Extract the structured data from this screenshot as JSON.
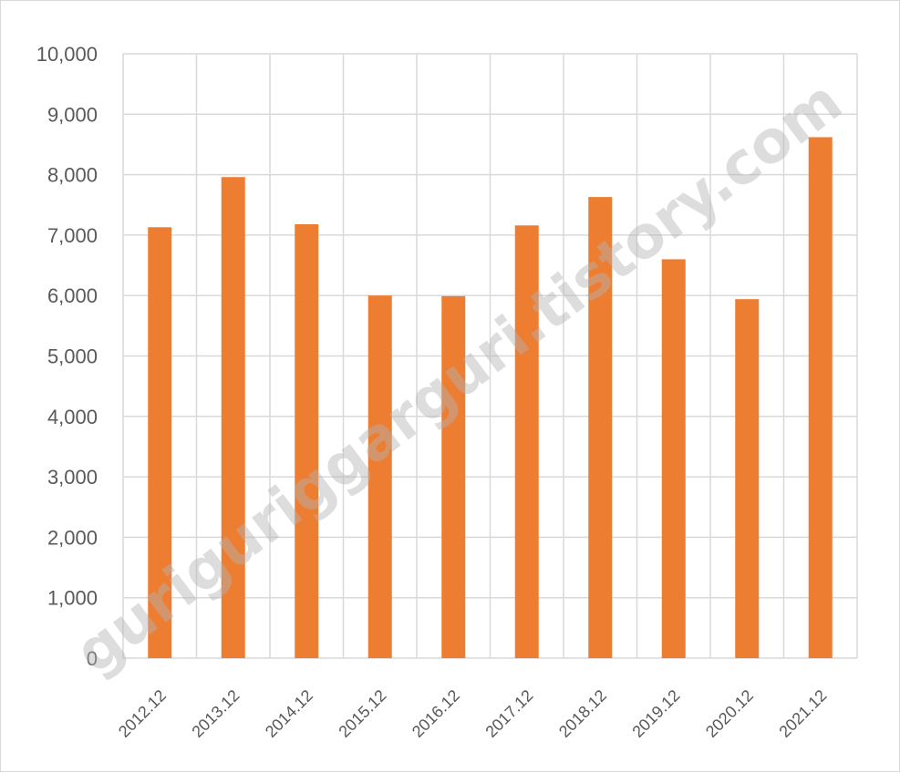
{
  "chart_data": {
    "type": "bar",
    "title": "",
    "xlabel": "",
    "ylabel": "",
    "categories": [
      "2012.12",
      "2013.12",
      "2014.12",
      "2015.12",
      "2016.12",
      "2017.12",
      "2018.12",
      "2019.12",
      "2020.12",
      "2021.12"
    ],
    "values": [
      7130,
      7960,
      7180,
      6000,
      5990,
      7160,
      7630,
      6600,
      5940,
      8620
    ],
    "ylim": [
      0,
      10000
    ],
    "yticks": [
      0,
      1000,
      2000,
      3000,
      4000,
      5000,
      6000,
      7000,
      8000,
      9000,
      10000
    ],
    "ytick_labels": [
      "0",
      "1,000",
      "2,000",
      "3,000",
      "4,000",
      "5,000",
      "6,000",
      "7,000",
      "8,000",
      "9,000",
      "10,000"
    ],
    "grid": true,
    "legend": "none",
    "colors": {
      "bar": "#ED7D31",
      "grid": "#d9d9d9",
      "text": "#595959"
    }
  },
  "watermark": {
    "text": "guriguriggarguri.tistory.com"
  }
}
